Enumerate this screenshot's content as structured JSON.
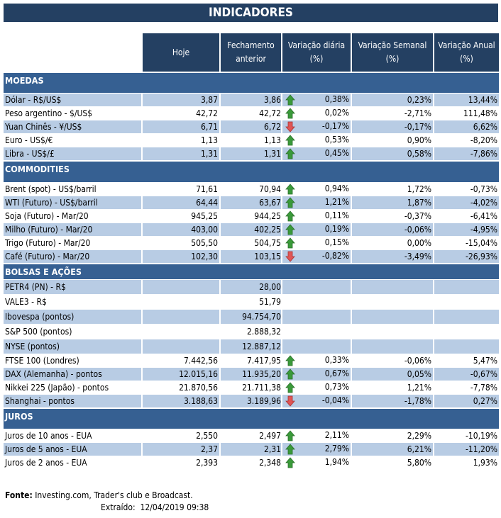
{
  "title": "INDICADORES",
  "headers": [
    "Hoje",
    "Fechamento anterior",
    "Variação diária (%)",
    "Variação Semanal (%)",
    "Variação Anual (%)"
  ],
  "colors": {
    "title_bg": "#244062",
    "section_bg": "#366092",
    "row_shade": "#b8cce4",
    "arrow_up": "#3a9a3a",
    "arrow_down": "#e05555"
  },
  "sections": [
    {
      "name": "MOEDAS",
      "rows": [
        {
          "label": "Dólar - R$/US$",
          "hoje": "3,87",
          "fech": "3,86",
          "arrow": "up",
          "dia": "0,38%",
          "sem": "0,23%",
          "ano": "13,44%"
        },
        {
          "label": "Peso argentino - $/US$",
          "hoje": "42,72",
          "fech": "42,72",
          "arrow": "up",
          "dia": "0,02%",
          "sem": "-2,71%",
          "ano": "111,48%"
        },
        {
          "label": "Yuan Chinês - ¥/US$",
          "hoje": "6,71",
          "fech": "6,72",
          "arrow": "down",
          "dia": "-0,17%",
          "sem": "-0,17%",
          "ano": "6,62%"
        },
        {
          "label": "Euro - US$/€",
          "hoje": "1,13",
          "fech": "1,13",
          "arrow": "up",
          "dia": "0,53%",
          "sem": "0,90%",
          "ano": "-8,20%"
        },
        {
          "label": "Libra - US$/£",
          "hoje": "1,31",
          "fech": "1,31",
          "arrow": "up",
          "dia": "0,45%",
          "sem": "0,58%",
          "ano": "-7,86%"
        }
      ]
    },
    {
      "name": "COMMODITIES",
      "rows": [
        {
          "label": "Brent (spot) - US$/barril",
          "hoje": "71,61",
          "fech": "70,94",
          "arrow": "up",
          "dia": "0,94%",
          "sem": "1,72%",
          "ano": "-0,73%"
        },
        {
          "label": "WTI (Futuro) - US$/barril",
          "hoje": "64,44",
          "fech": "63,67",
          "arrow": "up",
          "dia": "1,21%",
          "sem": "1,87%",
          "ano": "-4,02%"
        },
        {
          "label": "Soja (Futuro) - Mar/20",
          "hoje": "945,25",
          "fech": "944,25",
          "arrow": "up",
          "dia": "0,11%",
          "sem": "-0,37%",
          "ano": "-6,41%"
        },
        {
          "label": "Milho (Futuro) - Mar/20",
          "hoje": "403,00",
          "fech": "402,25",
          "arrow": "up",
          "dia": "0,19%",
          "sem": "-0,06%",
          "ano": "-4,95%"
        },
        {
          "label": "Trigo (Futuro) - Mar/20",
          "hoje": "505,50",
          "fech": "504,75",
          "arrow": "up",
          "dia": "0,15%",
          "sem": "0,00%",
          "ano": "-15,04%"
        },
        {
          "label": "Café (Futuro) - Mar/20",
          "hoje": "102,30",
          "fech": "103,15",
          "arrow": "down",
          "dia": "-0,82%",
          "sem": "-3,49%",
          "ano": "-26,93%"
        }
      ]
    },
    {
      "name": "BOLSAS E AÇÕES",
      "rows": [
        {
          "label": "PETR4 (PN) - R$",
          "hoje": "",
          "fech": "28,00",
          "arrow": "",
          "dia": "",
          "sem": "",
          "ano": ""
        },
        {
          "label": "VALE3 - R$",
          "hoje": "",
          "fech": "51,79",
          "arrow": "",
          "dia": "",
          "sem": "",
          "ano": ""
        },
        {
          "label": "Ibovespa (pontos)",
          "hoje": "",
          "fech": "94.754,70",
          "arrow": "",
          "dia": "",
          "sem": "",
          "ano": ""
        },
        {
          "label": "S&P 500 (pontos)",
          "hoje": "",
          "fech": "2.888,32",
          "arrow": "",
          "dia": "",
          "sem": "",
          "ano": ""
        },
        {
          "label": "NYSE (pontos)",
          "hoje": "",
          "fech": "12.887,12",
          "arrow": "",
          "dia": "",
          "sem": "",
          "ano": ""
        },
        {
          "label": "FTSE 100 (Londres)",
          "hoje": "7.442,56",
          "fech": "7.417,95",
          "arrow": "up",
          "dia": "0,33%",
          "sem": "-0,06%",
          "ano": "5,47%"
        },
        {
          "label": "DAX (Alemanha) - pontos",
          "hoje": "12.015,16",
          "fech": "11.935,20",
          "arrow": "up",
          "dia": "0,67%",
          "sem": "0,05%",
          "ano": "-0,67%"
        },
        {
          "label": "Nikkei 225 (Japão) - pontos",
          "hoje": "21.870,56",
          "fech": "21.711,38",
          "arrow": "up",
          "dia": "0,73%",
          "sem": "1,21%",
          "ano": "-7,78%"
        },
        {
          "label": "Shanghai - pontos",
          "hoje": "3.188,63",
          "fech": "3.189,96",
          "arrow": "down",
          "dia": "-0,04%",
          "sem": "-1,78%",
          "ano": "0,27%"
        }
      ]
    },
    {
      "name": "JUROS",
      "rows": [
        {
          "label": "Juros de 10 anos - EUA",
          "hoje": "2,550",
          "fech": "2,497",
          "arrow": "up",
          "dia": "2,11%",
          "sem": "2,29%",
          "ano": "-10,19%"
        },
        {
          "label": "Juros de 5 anos - EUA",
          "hoje": "2,37",
          "fech": "2,31",
          "arrow": "up",
          "dia": "2,79%",
          "sem": "6,21%",
          "ano": "-11,20%"
        },
        {
          "label": "Juros de 2 anos - EUA",
          "hoje": "2,393",
          "fech": "2,348",
          "arrow": "up",
          "dia": "1,94%",
          "sem": "5,80%",
          "ano": "1,93%"
        }
      ]
    }
  ],
  "footer": {
    "source_label": "Fonte:",
    "source_text": "Investing.com, Trader's club e Broadcast.",
    "extracted_label": "Extraído:",
    "extracted_value": "12/04/2019 09:38"
  }
}
